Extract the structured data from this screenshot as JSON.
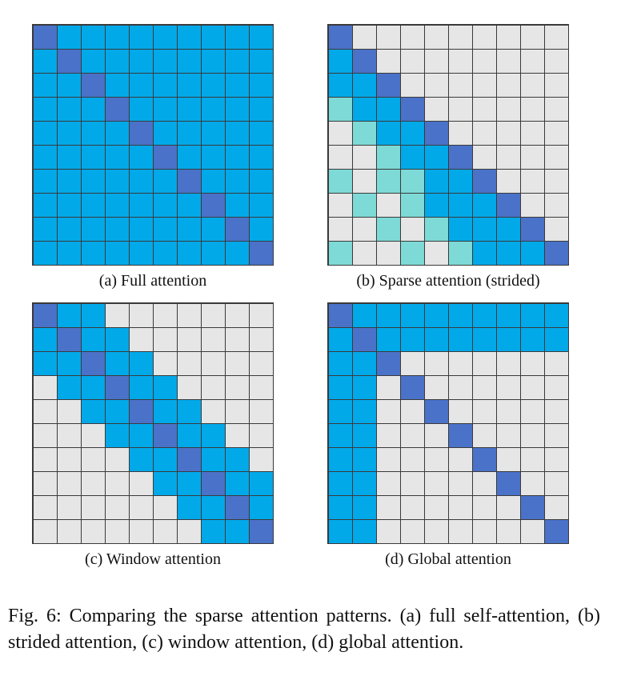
{
  "colors": {
    "diag": "#4a72c9",
    "attend": "#02a9e9",
    "stride": "#7ddad6",
    "empty": "#e6e6e6",
    "grid_line": "#3a3a3a"
  },
  "legend_codes": {
    "D": "diag",
    "A": "attend",
    "S": "stride",
    "E": "empty"
  },
  "panels": [
    {
      "caption": "(a) Full attention",
      "rows": [
        "DAAAAAAAAA",
        "ADAAAAAAAA",
        "AADAAAAAAA",
        "AAADAAAAAA",
        "AAAADAAAAA",
        "AAAAADAAAA",
        "AAAAAADAAA",
        "AAAAAAADAA",
        "AAAAAAAADA",
        "AAAAAAAAAD"
      ]
    },
    {
      "caption": "(b) Sparse attention (strided)",
      "rows": [
        "DEEEEEEEEE",
        "ADEEEEEEEE",
        "AADEEEEEEE",
        "SAADEEEEEE",
        "ESAADEEEEE",
        "EESAADEEEE",
        "SESSAADEEE",
        "ESESAAADEE",
        "EESESAAADE",
        "SEESESAAAD"
      ]
    },
    {
      "caption": "(c) Window attention",
      "rows": [
        "DAAEEEEEEE",
        "ADAAEEEEEE",
        "AADAAEEEEE",
        "EAADAAEEEE",
        "EEAADAAEEE",
        "EEEAADAAEE",
        "EEEEAADAAE",
        "EEEEEAADAA",
        "EEEEEEAADA",
        "EEEEEEEAAD"
      ]
    },
    {
      "caption": "(d) Global attention",
      "rows": [
        "DAAAAAAAAA",
        "ADAAAAAAAA",
        "AADEEEEEEE",
        "AAEDEEEEEE",
        "AAEEDEEEEE",
        "AAEEEDEEEE",
        "AAEEEEDEEE",
        "AAEEEEEDEE",
        "AAEEEEEEDE",
        "AAEEEEEEED"
      ]
    }
  ],
  "figure_caption": "Fig. 6: Comparing the sparse attention patterns. (a) full self-attention, (b) strided attention, (c) window attention, (d) global attention."
}
